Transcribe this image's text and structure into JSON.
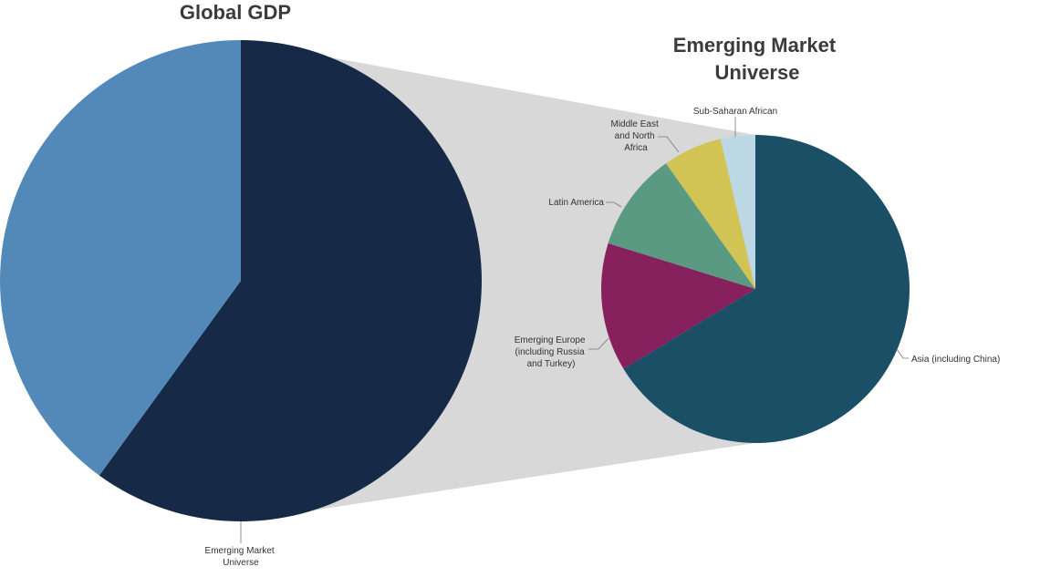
{
  "chart_data": [
    {
      "type": "pie",
      "title": "Global GDP",
      "slices": [
        {
          "label": "Emerging Market Universe",
          "value": 60,
          "color": "#162a47"
        },
        {
          "label": "",
          "value": 40,
          "color": "#5389b8"
        }
      ]
    },
    {
      "type": "pie",
      "title": "Emerging Market Universe",
      "slices": [
        {
          "label": "Asia (including China)",
          "value": 64,
          "color": "#1a4f66"
        },
        {
          "label": "Emerging Europe (including Russia and Turkey)",
          "value": 13,
          "color": "#86215e"
        },
        {
          "label": "Latin America",
          "value": 10,
          "color": "#5b9a82"
        },
        {
          "label": "Middle East and North Africa",
          "value": 6,
          "color": "#d1c455"
        },
        {
          "label": "Sub-Saharan African",
          "value": 3.5,
          "color": "#bcd8e5"
        }
      ]
    }
  ],
  "connector_color": "#d8d8d8"
}
